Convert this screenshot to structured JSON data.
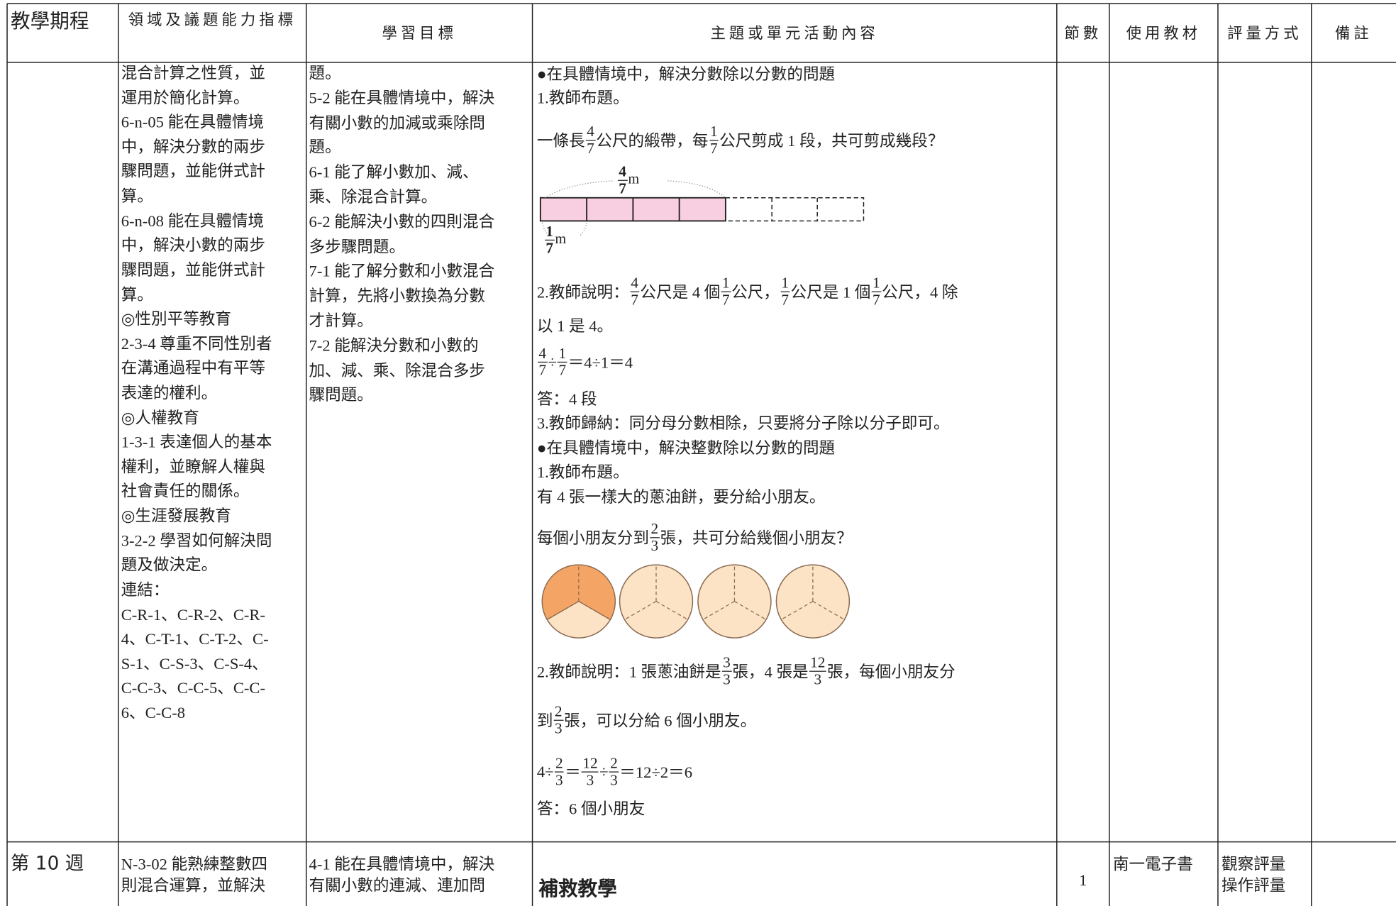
{
  "header": [
    "教學期程",
    "領域及議題能力指標",
    "學習目標",
    "主題或單元活動內容",
    "節數",
    "使用教材",
    "評量方式",
    "備註"
  ],
  "rows": [
    {
      "indicators": [
        "混合計算之性質，並",
        "運用於簡化計算。",
        "6-n-05 能在具體情境",
        "中，解決分數的兩步",
        "驟問題，並能併式計",
        "算。",
        "6-n-08 能在具體情境",
        "中，解決小數的兩步",
        "驟問題，並能併式計",
        "算。",
        "◎性別平等教育",
        "2-3-4 尊重不同性別者",
        "在溝通過程中有平等",
        "表達的權利。",
        "◎人權教育",
        "1-3-1 表達個人的基本",
        "權利，並瞭解人權與",
        "社會責任的關係。",
        "◎生涯發展教育",
        "3-2-2 學習如何解決問",
        "題及做決定。",
        "連結：",
        "C-R-1、C-R-2、C-R-",
        "4、C-T-1、C-T-2、C-",
        "S-1、C-S-3、C-S-4、",
        "C-C-3、C-C-5、C-C-",
        "6、C-C-8"
      ],
      "objectives": [
        "題。",
        "5-2 能在具體情境中，解決",
        "有關小數的加減或乘除問",
        "題。",
        "6-1 能了解小數加、減、",
        "乘、除混合計算。",
        "6-2 能解決小數的四則混合",
        "多步驟問題。",
        "7-1 能了解分數和小數混合",
        "計算，先將小數換為分數",
        "才計算。",
        "7-2 能解決分數和小數的",
        "加、減、乘、除混合多步",
        "驟問題。"
      ],
      "content": [
        [
          "●在具體情境中，解決分數除以分數的問題"
        ],
        [
          "1.教師布題。"
        ],
        [
          "一條長",
          {
            "num": "4",
            "den": "7"
          },
          "公尺的緞帶，每",
          {
            "num": "1",
            "den": "7"
          },
          "公尺剪成 1 段，共可剪成幾段？"
        ],
        [
          "2.教師說明：",
          {
            "num": "4",
            "den": "7"
          },
          "公尺是 4 個",
          {
            "num": "1",
            "den": "7"
          },
          "公尺，",
          {
            "num": "1",
            "den": "7"
          },
          "公尺是 1 個",
          {
            "num": "1",
            "den": "7"
          },
          "公尺，4 除"
        ],
        [
          "以 1 是 4。"
        ],
        [
          {
            "num": "4",
            "den": "7"
          },
          "÷",
          {
            "num": "1",
            "den": "7"
          },
          "＝4÷1＝4"
        ],
        [
          "答：4 段"
        ],
        [
          "3.教師歸納：同分母分數相除，只要將分子除以分子即可。"
        ],
        [
          "●在具體情境中，解決整數除以分數的問題"
        ],
        [
          "1.教師布題。"
        ],
        [
          "有 4 張一樣大的蔥油餅，要分給小朋友。"
        ],
        [
          "每個小朋友分到",
          {
            "num": "2",
            "den": "3"
          },
          "張，共可分給幾個小朋友？"
        ],
        [
          "2.教師說明：1 張蔥油餅是",
          {
            "num": "3",
            "den": "3"
          },
          "張，4 張是",
          {
            "num": "12",
            "den": "3"
          },
          "張，每個小朋友分"
        ],
        [
          "到",
          {
            "num": "2",
            "den": "3"
          },
          "張，可以分給 6 個小朋友。"
        ],
        [
          "4÷",
          {
            "num": "2",
            "den": "3"
          },
          "＝",
          {
            "num": "12",
            "den": "3"
          },
          "÷",
          {
            "num": "2",
            "den": "3"
          },
          "＝12÷2＝6"
        ],
        [
          "答：6 個小朋友"
        ]
      ],
      "ribbon_labels": [
        {
          "num": "4",
          "den": "7",
          "unit": "m"
        },
        {
          "num": "1",
          "den": "7",
          "unit": "m"
        }
      ]
    },
    {
      "period": "第 10 週",
      "indicators": [
        "N-3-02 能熟練整數四",
        "則混合運算，並解決"
      ],
      "objectives": [
        "4-1 能在具體情境中，解決",
        "有關小數的連減、連加問"
      ],
      "content": "補救教學",
      "lessons": "1",
      "materials": "南一電子書",
      "assessment": [
        "觀察評量",
        "操作評量"
      ]
    }
  ]
}
